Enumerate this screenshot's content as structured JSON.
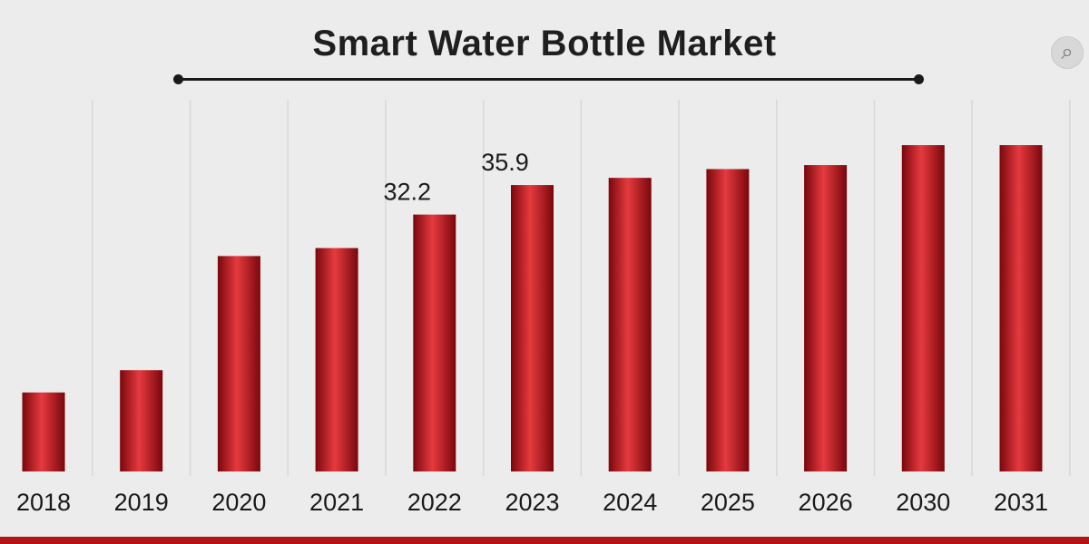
{
  "header": {
    "title": "Smart Water Bottle Market",
    "zoom_icon": "search-icon"
  },
  "colors": {
    "bar": "#c8101a",
    "bar_dark": "#7a070c",
    "bar_light": "#e53a3f",
    "background": "#ececec",
    "accent": "#b31217"
  },
  "chart_data": {
    "type": "bar",
    "title": "Smart Water Bottle Market",
    "xlabel": "",
    "ylabel": "",
    "ylim": [
      0,
      50
    ],
    "grid": true,
    "legend": "none",
    "categories": [
      "2018",
      "2019",
      "2020",
      "2021",
      "2022",
      "2023",
      "2024",
      "2025",
      "2026",
      "2030",
      "2031"
    ],
    "values": [
      9.9,
      12.7,
      27.0,
      28.0,
      32.2,
      35.9,
      36.8,
      37.9,
      38.4,
      40.9,
      40.9
    ],
    "data_labels": [
      {
        "index": 4,
        "text": "32.2"
      },
      {
        "index": 5,
        "text": "35.9"
      }
    ]
  }
}
